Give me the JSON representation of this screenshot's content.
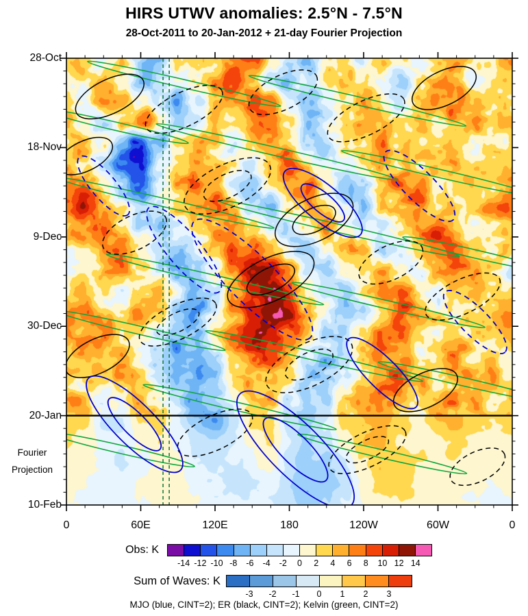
{
  "title": "HIRS UTWV anomalies: 2.5°N - 7.5°N",
  "subtitle": "28-Oct-2011 to 20-Jan-2012 + 21-day Fourier Projection",
  "caption": "MJO (blue, CINT=2); ER (black, CINT=2); Kelvin (green, CINT=2)",
  "axes": {
    "y_ticks": [
      {
        "day": 0,
        "label": "28-Oct"
      },
      {
        "day": 21,
        "label": "18-Nov"
      },
      {
        "day": 42,
        "label": "9-Dec"
      },
      {
        "day": 63,
        "label": "30-Dec"
      },
      {
        "day": 84,
        "label": "20-Jan"
      },
      {
        "day": 105,
        "label": "10-Feb"
      }
    ],
    "fourier_label": [
      "Fourier",
      "Projection"
    ],
    "x_ticks": [
      {
        "lon": 0,
        "label": "0"
      },
      {
        "lon": 60,
        "label": "60E"
      },
      {
        "lon": 120,
        "label": "120E"
      },
      {
        "lon": 180,
        "label": "180"
      },
      {
        "lon": 240,
        "label": "120W"
      },
      {
        "lon": 300,
        "label": "60W"
      },
      {
        "lon": 360,
        "label": "0"
      }
    ],
    "x_minor_step_deg": 15,
    "y_minor_step_days": 3
  },
  "colorbars": [
    {
      "label": "Obs: K",
      "levels": [
        -14,
        -12,
        -10,
        -8,
        -6,
        -4,
        -2,
        0,
        2,
        4,
        6,
        8,
        10,
        12,
        14
      ],
      "colors": [
        "#7A0DA6",
        "#0F0FD2",
        "#2353E8",
        "#3C8AF0",
        "#6FB4F5",
        "#9DD0FA",
        "#C6E5FC",
        "#E8F5FE",
        "#FDF6CF",
        "#FFD84F",
        "#FFB02E",
        "#FF7F17",
        "#F4440C",
        "#D81E05",
        "#8F1507",
        "#F559B4"
      ]
    },
    {
      "label": "Sum of Waves: K",
      "levels": [
        -3,
        -2,
        -1,
        0,
        1,
        2,
        3
      ],
      "colors": [
        "#2B6FC4",
        "#5B9BD8",
        "#9CC6E8",
        "#D6E9F5",
        "#FBF3C0",
        "#FFC84A",
        "#FF8C1E",
        "#EE3E0E"
      ]
    }
  ],
  "chart_data": {
    "type": "heatmap",
    "subtype": "hovmoller-time-longitude",
    "title": "HIRS UTWV anomalies: 2.5°N - 7.5°N",
    "subtitle": "28-Oct-2011 to 20-Jan-2012 + 21-day Fourier Projection",
    "units": "K",
    "x": {
      "label": "longitude",
      "range_deg": [
        0,
        360
      ],
      "ticks": [
        "0",
        "60E",
        "120E",
        "180",
        "120W",
        "60W",
        "0"
      ]
    },
    "y": {
      "label": "time (downward)",
      "range_days": [
        0,
        105
      ],
      "ticks": [
        "28-Oct",
        "18-Nov",
        "9-Dec",
        "30-Dec",
        "20-Jan",
        "10-Feb"
      ],
      "obs_end_day": 84,
      "projection_label": "Fourier Projection"
    },
    "fill_scale_note": "filled with colorbars[0], contour interval 2 K",
    "lon_start": 0,
    "lon_step_deg": 15,
    "day_start": 0,
    "day_step": 5,
    "grid_values": [
      [
        5,
        3,
        -2,
        2,
        -4,
        -6,
        2,
        4,
        2,
        6,
        8,
        4,
        -2,
        -6,
        2,
        3,
        -2,
        4,
        2,
        -3,
        3,
        6,
        2,
        4
      ],
      [
        3,
        2,
        4,
        2,
        -6,
        -4,
        -2,
        2,
        6,
        9,
        4,
        -2,
        -5,
        -3,
        3,
        6,
        2,
        -2,
        -4,
        2,
        5,
        3,
        -2,
        2
      ],
      [
        2,
        -2,
        5,
        7,
        2,
        -5,
        -8,
        -3,
        2,
        6,
        10,
        6,
        -2,
        -6,
        -2,
        4,
        6,
        2,
        -3,
        2,
        6,
        8,
        3,
        2
      ],
      [
        4,
        2,
        -3,
        3,
        8,
        2,
        -6,
        -4,
        2,
        4,
        7,
        9,
        3,
        -4,
        -2,
        2,
        5,
        3,
        2,
        4,
        2,
        5,
        7,
        4
      ],
      [
        2,
        4,
        2,
        -8,
        -12,
        -6,
        2,
        5,
        2,
        -2,
        4,
        8,
        5,
        -2,
        -5,
        2,
        3,
        6,
        4,
        2,
        5,
        3,
        2,
        3
      ],
      [
        3,
        2,
        -4,
        -11,
        -13,
        -4,
        3,
        7,
        4,
        2,
        -2,
        5,
        9,
        3,
        -3,
        -2,
        4,
        7,
        3,
        2,
        4,
        6,
        3,
        2
      ],
      [
        5,
        7,
        3,
        -6,
        -9,
        -2,
        5,
        9,
        5,
        -2,
        -4,
        2,
        6,
        8,
        2,
        -4,
        -2,
        4,
        8,
        5,
        2,
        3,
        5,
        4
      ],
      [
        8,
        10,
        6,
        2,
        -4,
        -2,
        3,
        6,
        8,
        3,
        -3,
        -5,
        2,
        6,
        4,
        -2,
        -5,
        2,
        5,
        8,
        4,
        2,
        4,
        6
      ],
      [
        4,
        6,
        9,
        4,
        -2,
        -4,
        -2,
        3,
        5,
        7,
        2,
        -4,
        -2,
        3,
        6,
        2,
        -3,
        -2,
        3,
        6,
        9,
        5,
        2,
        3
      ],
      [
        2,
        3,
        5,
        7,
        2,
        -3,
        -6,
        -2,
        4,
        8,
        10,
        4,
        -2,
        -4,
        2,
        5,
        3,
        -4,
        -2,
        4,
        7,
        8,
        4,
        2
      ],
      [
        -2,
        2,
        4,
        6,
        3,
        -2,
        -5,
        -3,
        2,
        6,
        11,
        12,
        6,
        -2,
        -4,
        2,
        4,
        6,
        2,
        -2,
        4,
        6,
        7,
        3
      ],
      [
        3,
        5,
        2,
        -2,
        2,
        4,
        -2,
        -6,
        -3,
        4,
        9,
        14,
        10,
        3,
        -3,
        -5,
        2,
        5,
        7,
        3,
        -2,
        3,
        5,
        4
      ],
      [
        6,
        8,
        4,
        2,
        5,
        2,
        -4,
        -7,
        -2,
        5,
        12,
        15,
        12,
        5,
        -2,
        -6,
        -3,
        3,
        8,
        6,
        2,
        -2,
        3,
        5
      ],
      [
        4,
        6,
        7,
        3,
        2,
        -3,
        -6,
        -4,
        2,
        7,
        10,
        12,
        8,
        2,
        -4,
        -3,
        2,
        6,
        9,
        4,
        2,
        3,
        2,
        3
      ],
      [
        2,
        3,
        5,
        6,
        2,
        -4,
        -8,
        -5,
        -2,
        4,
        8,
        9,
        4,
        -2,
        -5,
        -2,
        4,
        8,
        6,
        2,
        4,
        6,
        3,
        2
      ],
      [
        3,
        2,
        2,
        4,
        3,
        -2,
        -6,
        -8,
        -4,
        2,
        5,
        6,
        2,
        -4,
        -6,
        -2,
        3,
        6,
        8,
        5,
        2,
        4,
        6,
        4
      ],
      [
        5,
        3,
        -2,
        2,
        4,
        2,
        -4,
        -9,
        -6,
        -2,
        3,
        4,
        -2,
        -6,
        -4,
        2,
        5,
        7,
        4,
        2,
        5,
        7,
        4,
        3
      ],
      [
        3,
        2,
        -3,
        -2,
        2,
        3,
        -2,
        -6,
        -8,
        -3,
        2,
        3,
        -3,
        -5,
        -2,
        3,
        4,
        5,
        3,
        2,
        4,
        5,
        3,
        2
      ],
      [
        2,
        1,
        -1,
        -2,
        1,
        2,
        -1,
        -3,
        -4,
        -2,
        1,
        2,
        -2,
        -4,
        -3,
        1,
        4,
        4,
        2,
        1,
        2,
        3,
        2,
        1
      ],
      [
        1,
        1,
        -1,
        -2,
        -1,
        1,
        1,
        -2,
        -3,
        -2,
        -1,
        1,
        -3,
        -5,
        -4,
        -2,
        2,
        4,
        3,
        2,
        1,
        2,
        1,
        1
      ],
      [
        1,
        0,
        -1,
        -1,
        0,
        1,
        0,
        -1,
        -2,
        -3,
        -2,
        -1,
        -4,
        -6,
        -5,
        -3,
        1,
        3,
        3,
        2,
        1,
        1,
        1,
        0
      ],
      [
        0,
        0,
        -1,
        -1,
        0,
        0,
        1,
        0,
        -1,
        -2,
        -2,
        -2,
        -3,
        -5,
        -4,
        -2,
        0,
        2,
        2,
        1,
        1,
        1,
        0,
        0
      ]
    ],
    "overlays": {
      "mjo": {
        "label": "MJO",
        "color": "#0000CD",
        "cint_k": 2,
        "fields": [
          "lon_deg",
          "day",
          "rx_px",
          "ry_px",
          "angle_deg",
          "dashed",
          "nested"
        ],
        "ellipses": [
          [
            207,
            34,
            72,
            26,
            40,
            0,
            2
          ],
          [
            150,
            52,
            120,
            34,
            45,
            1,
            1
          ],
          [
            95,
            45,
            80,
            24,
            50,
            1,
            1
          ],
          [
            55,
            86,
            95,
            30,
            45,
            0,
            2
          ],
          [
            185,
            92,
            115,
            38,
            45,
            0,
            2
          ],
          [
            285,
            30,
            70,
            22,
            45,
            1,
            1
          ],
          [
            330,
            62,
            62,
            20,
            45,
            1,
            1
          ],
          [
            30,
            30,
            55,
            18,
            50,
            1,
            1
          ],
          [
            255,
            74,
            70,
            22,
            45,
            0,
            1
          ]
        ]
      },
      "er": {
        "label": "ER",
        "color": "#000000",
        "cint_k": 2,
        "fields": [
          "lon_deg",
          "day",
          "rx_deg",
          "ry_days",
          "dashed",
          "nested"
        ],
        "ellipses": [
          [
            35,
            9,
            30,
            4,
            0,
            1
          ],
          [
            15,
            23,
            24,
            3.5,
            0,
            1
          ],
          [
            95,
            12,
            34,
            4,
            1,
            1
          ],
          [
            175,
            8,
            30,
            4,
            1,
            1
          ],
          [
            242,
            14,
            34,
            4,
            1,
            1
          ],
          [
            305,
            7,
            28,
            4,
            0,
            1
          ],
          [
            130,
            30,
            38,
            5,
            1,
            2
          ],
          [
            55,
            41,
            28,
            4,
            1,
            1
          ],
          [
            200,
            38,
            34,
            5,
            0,
            2
          ],
          [
            165,
            52,
            38,
            5,
            0,
            2
          ],
          [
            262,
            48,
            28,
            4,
            1,
            1
          ],
          [
            320,
            56,
            33,
            4,
            1,
            1
          ],
          [
            90,
            62,
            34,
            4,
            1,
            2
          ],
          [
            25,
            70,
            28,
            4,
            0,
            1
          ],
          [
            196,
            72,
            38,
            5,
            1,
            2
          ],
          [
            290,
            78,
            28,
            4,
            0,
            1
          ],
          [
            120,
            88,
            33,
            4,
            1,
            1
          ],
          [
            243,
            92,
            34,
            4,
            1,
            2
          ],
          [
            332,
            96,
            24,
            3.5,
            1,
            1
          ]
        ]
      },
      "kelvin": {
        "label": "Kelvin",
        "color": "#0FA63C",
        "cint_k": 2,
        "fields": [
          "lon_deg",
          "day",
          "half_length_deg"
        ],
        "streaks": [
          [
            95,
            6,
            80
          ],
          [
            235,
            10,
            90
          ],
          [
            40,
            16,
            60
          ],
          [
            170,
            22,
            100
          ],
          [
            300,
            27,
            80
          ],
          [
            80,
            34,
            90
          ],
          [
            220,
            40,
            100
          ],
          [
            330,
            46,
            60
          ],
          [
            120,
            52,
            90
          ],
          [
            260,
            58,
            80
          ],
          [
            60,
            64,
            70
          ],
          [
            200,
            70,
            90
          ],
          [
            320,
            76,
            70
          ],
          [
            140,
            82,
            80
          ],
          [
            45,
            92,
            60
          ],
          [
            255,
            93,
            70
          ]
        ]
      }
    },
    "reference_lon_lines_deg": [
      78,
      83
    ],
    "obs_end_day": 84
  }
}
